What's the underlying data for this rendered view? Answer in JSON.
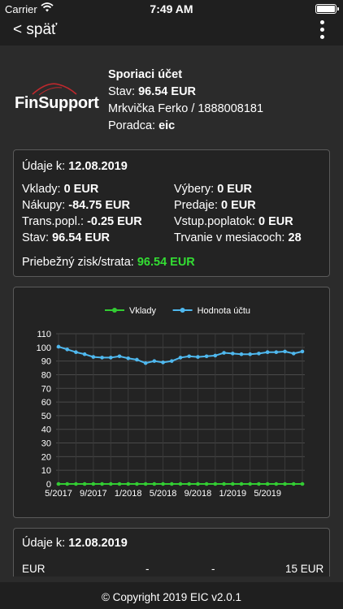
{
  "status_bar": {
    "carrier": "Carrier",
    "time": "7:49 AM"
  },
  "nav": {
    "back_label": "< späť"
  },
  "profile": {
    "logo_text": "FinSupport",
    "account_title": "Sporiaci účet",
    "balance_label": "Stav:",
    "balance_value": "96.54 EUR",
    "owner": "Mrkvička Ferko / 1888008181",
    "advisor_label": "Poradca:",
    "advisor_value": "eic"
  },
  "summary": {
    "date_label": "Údaje k:",
    "date_value": "12.08.2019",
    "deposits_label": "Vklady:",
    "deposits_value": "0 EUR",
    "withdrawals_label": "Výbery:",
    "withdrawals_value": "0 EUR",
    "purchases_label": "Nákupy:",
    "purchases_value": "-84.75 EUR",
    "sales_label": "Predaje:",
    "sales_value": "0 EUR",
    "trans_fee_label": "Trans.popl.:",
    "trans_fee_value": "-0.25 EUR",
    "entry_fee_label": "Vstup.poplatok:",
    "entry_fee_value": "0 EUR",
    "state_label": "Stav:",
    "state_value": "96.54 EUR",
    "duration_label": "Trvanie v mesiacoch:",
    "duration_value": "28",
    "profit_label": "Priebežný zisk/strata:",
    "profit_value": "96.54 EUR"
  },
  "chart_data": {
    "type": "line",
    "ylim": [
      0,
      110
    ],
    "yticks": [
      "0",
      "10",
      "20",
      "30",
      "40",
      "50",
      "60",
      "70",
      "80",
      "90",
      "100",
      "110"
    ],
    "xtick_labels": [
      "5/2017",
      "9/2017",
      "1/2018",
      "5/2018",
      "9/2018",
      "1/2019",
      "5/2019"
    ],
    "legend_placement": "top",
    "series": [
      {
        "name": "Vklady",
        "color": "#33cc33",
        "values": [
          0,
          0,
          0,
          0,
          0,
          0,
          0,
          0,
          0,
          0,
          0,
          0,
          0,
          0,
          0,
          0,
          0,
          0,
          0,
          0,
          0,
          0,
          0,
          0,
          0,
          0,
          0,
          0,
          0
        ]
      },
      {
        "name": "Hodnota účtu",
        "color": "#4fb8ee",
        "values": [
          100.5,
          98.5,
          96.5,
          95,
          93,
          92.5,
          92.5,
          93.5,
          92,
          91,
          88.5,
          90,
          89,
          90,
          92.5,
          93.5,
          93,
          93.5,
          94,
          96,
          95.5,
          95,
          95,
          95.5,
          96.5,
          96.5,
          97,
          95.5,
          97
        ]
      }
    ]
  },
  "detail": {
    "date_label": "Údaje k:",
    "date_value": "12.08.2019",
    "row": [
      "EUR",
      "-",
      "-",
      "15 EUR"
    ]
  },
  "footer": {
    "copyright": "© Copyright 2019 EIC v2.0.1"
  }
}
